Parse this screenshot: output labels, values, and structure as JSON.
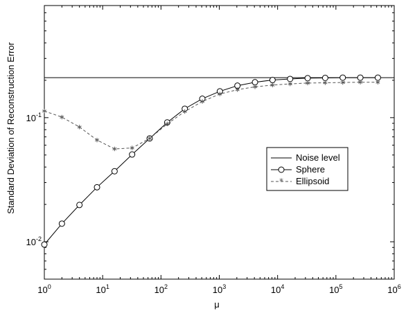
{
  "chart_data": {
    "type": "line",
    "title": "",
    "xlabel": "μ",
    "ylabel": "Standard Deviation of Reconstruction Error",
    "xscale": "log",
    "yscale": "log",
    "xlim": [
      1,
      1000000
    ],
    "ylim": [
      0.005,
      0.8
    ],
    "xticks": [
      {
        "value": 1,
        "base": "10",
        "exp": "0"
      },
      {
        "value": 10,
        "base": "10",
        "exp": "1"
      },
      {
        "value": 100,
        "base": "10",
        "exp": "2"
      },
      {
        "value": 1000,
        "base": "10",
        "exp": "3"
      },
      {
        "value": 10000,
        "base": "10",
        "exp": "4"
      },
      {
        "value": 100000,
        "base": "10",
        "exp": "5"
      },
      {
        "value": 1000000,
        "base": "10",
        "exp": "6"
      }
    ],
    "yticks": [
      {
        "value": 0.01,
        "base": "10",
        "exp": "-2"
      },
      {
        "value": 0.1,
        "base": "10",
        "exp": "-1"
      }
    ],
    "grid": false,
    "legend_position": "right",
    "series": [
      {
        "name": "Noise level",
        "color": "#000000",
        "style": "solid",
        "marker": "none",
        "x": [
          1,
          1000000
        ],
        "y": [
          0.21,
          0.21
        ]
      },
      {
        "name": "Sphere",
        "color": "#000000",
        "style": "solid",
        "marker": "circle",
        "x": [
          1,
          2,
          4,
          8,
          16,
          32,
          64,
          128,
          256,
          512,
          1024,
          2048,
          4096,
          8192,
          16384,
          32768,
          65536,
          131072,
          262144,
          524288
        ],
        "y": [
          0.0095,
          0.014,
          0.0198,
          0.0275,
          0.037,
          0.0505,
          0.068,
          0.0915,
          0.118,
          0.142,
          0.163,
          0.181,
          0.193,
          0.201,
          0.205,
          0.208,
          0.209,
          0.21,
          0.21,
          0.21
        ]
      },
      {
        "name": "Ellipsoid",
        "color": "#555555",
        "style": "dashed",
        "marker": "star",
        "x": [
          1,
          2,
          4,
          8,
          16,
          32,
          64,
          128,
          256,
          512,
          1024,
          2048,
          4096,
          8192,
          16384,
          32768,
          65536,
          131072,
          262144,
          524288
        ],
        "y": [
          0.113,
          0.101,
          0.084,
          0.066,
          0.056,
          0.057,
          0.068,
          0.089,
          0.112,
          0.135,
          0.155,
          0.168,
          0.177,
          0.183,
          0.187,
          0.19,
          0.191,
          0.192,
          0.193,
          0.193
        ]
      }
    ]
  }
}
